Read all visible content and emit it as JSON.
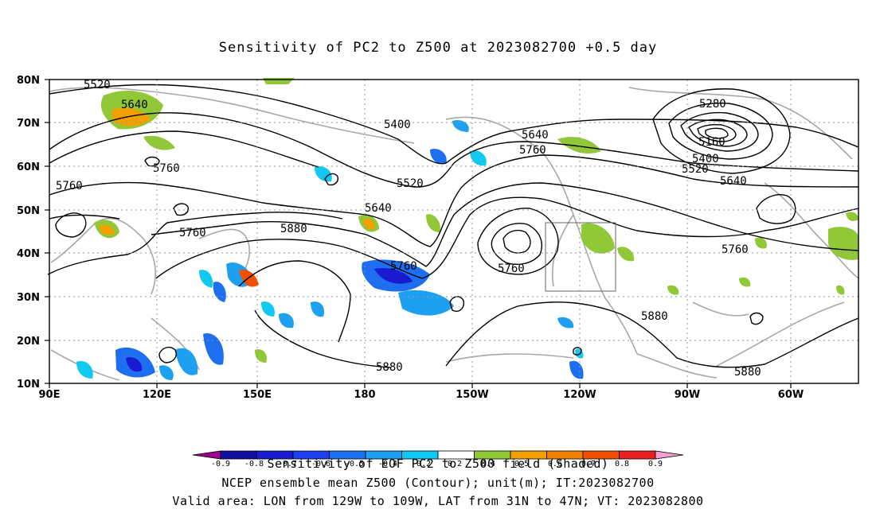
{
  "title": "Sensitivity of PC2 to Z500 at 2023082700 +0.5 day",
  "lon_ticks": [
    "90E",
    "120E",
    "150E",
    "180",
    "150W",
    "120W",
    "90W",
    "60W"
  ],
  "lat_ticks": [
    "80N",
    "70N",
    "60N",
    "50N",
    "40N",
    "30N",
    "20N",
    "10N"
  ],
  "contour_labels": [
    "5520",
    "5640",
    "5760",
    "5760",
    "5400",
    "5520",
    "5640",
    "5760",
    "5640",
    "5760",
    "5880",
    "5760",
    "5640",
    "5760",
    "5280",
    "5160",
    "5400",
    "5520",
    "5640",
    "5760",
    "5880",
    "5880",
    "5880"
  ],
  "colorbar": {
    "labels": [
      "-0.9",
      "-0.8",
      "-0.7",
      "-0.6",
      "-0.5",
      "-0.4",
      "-0.2",
      "0.2",
      "0.4",
      "0.5",
      "0.6",
      "0.7",
      "0.8",
      "0.9"
    ],
    "colors": [
      "#a00090",
      "#1010a0",
      "#1a1ad0",
      "#1e3ff0",
      "#1e6ef0",
      "#1ea0f0",
      "#10c8f0",
      "#ffffff",
      "#90c838",
      "#f0a000",
      "#f08000",
      "#f05000",
      "#e82020",
      "#f0a0d0"
    ]
  },
  "caption": {
    "line1": "Sensitivity of EOF PC2 to Z500 field (Shaded)",
    "line2": "NCEP ensemble mean Z500 (Contour); unit(m); IT:2023082700",
    "line3": "Valid area: LON from 129W to 109W, LAT from 31N to 47N; VT: 2023082800"
  }
}
